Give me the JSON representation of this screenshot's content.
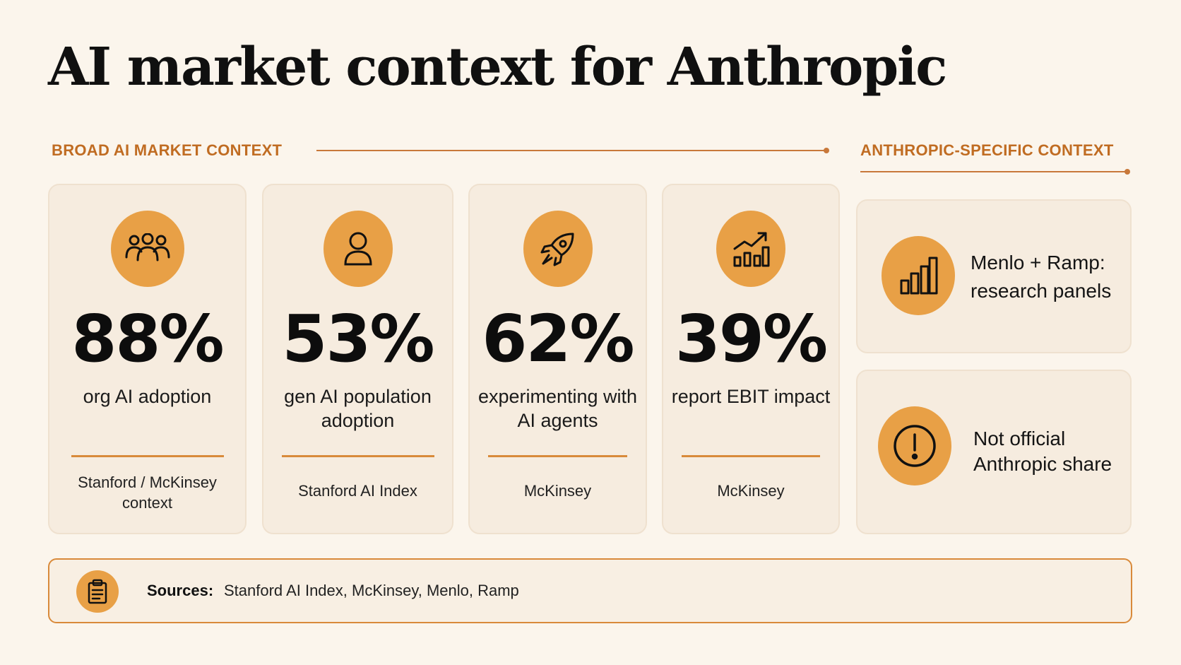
{
  "title": "AI market context for Anthropic",
  "sections": {
    "broad": "BROAD AI MARKET CONTEXT",
    "specific": "ANTHROPIC-SPECIFIC CONTEXT"
  },
  "accent_color": "#e8a046",
  "label_color": "#c06c22",
  "stats": [
    {
      "icon": "people-group-icon",
      "value": "88%",
      "desc": "org AI adoption",
      "source": "Stanford / McKinsey context"
    },
    {
      "icon": "person-icon",
      "value": "53%",
      "desc": "gen AI population adoption",
      "source": "Stanford AI Index"
    },
    {
      "icon": "rocket-icon",
      "value": "62%",
      "desc": "experimenting with AI agents",
      "source": "McKinsey"
    },
    {
      "icon": "growth-chart-icon",
      "value": "39%",
      "desc": "report EBIT impact",
      "source": "McKinsey"
    }
  ],
  "side": [
    {
      "icon": "bar-chart-icon",
      "label_line1": "Menlo + Ramp:",
      "label_line2": "research panels"
    },
    {
      "icon": "exclamation-icon",
      "label_line1": "Not official",
      "label_line2": "Anthropic share"
    }
  ],
  "footer": {
    "icon": "clipboard-icon",
    "label": "Sources:",
    "text": "Stanford AI Index, McKinsey, Menlo, Ramp"
  }
}
